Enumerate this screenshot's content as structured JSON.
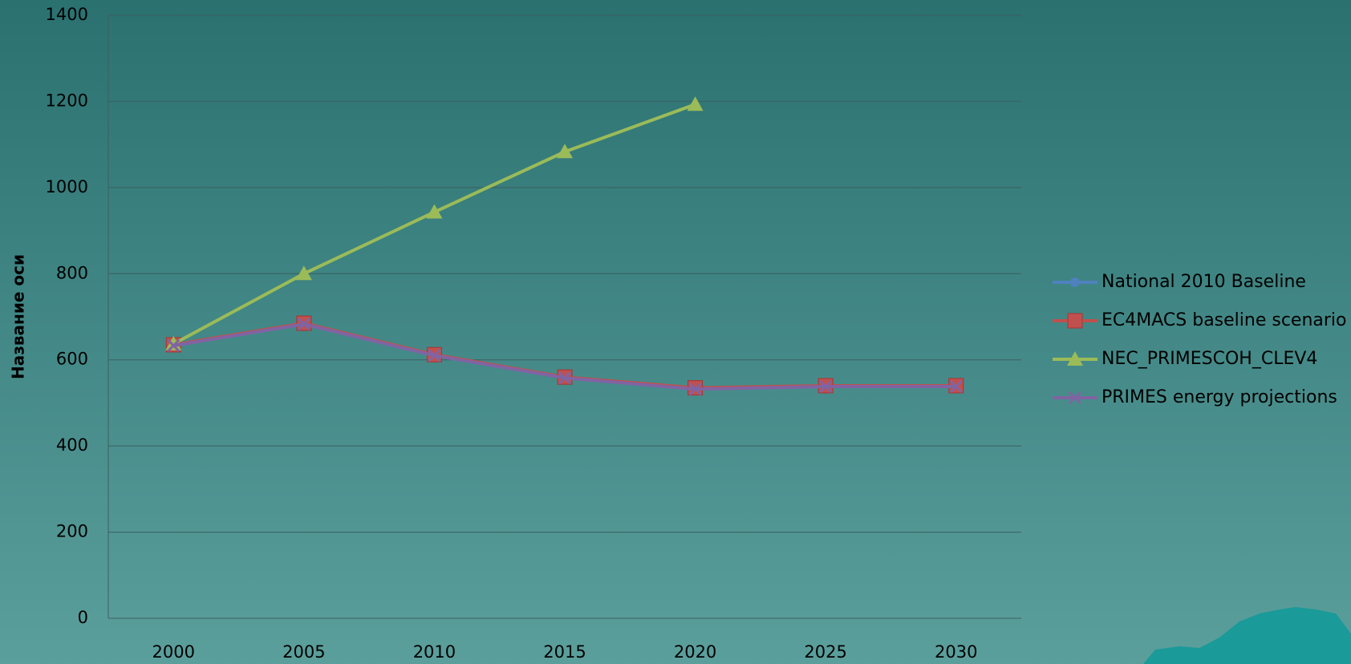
{
  "chart_data": {
    "type": "line",
    "y_label": "Название оси",
    "categories": [
      "2000",
      "2005",
      "2010",
      "2015",
      "2020",
      "2025",
      "2030"
    ],
    "series": [
      {
        "name": "National 2010 Baseline",
        "color": "#4f81bd",
        "marker": "circle",
        "values": [
          633,
          683,
          610,
          558,
          532,
          538,
          538
        ]
      },
      {
        "name": "EC4MACS baseline scenario",
        "color": "#c0504d",
        "marker": "square",
        "values": [
          635,
          685,
          612,
          560,
          535,
          540,
          540
        ]
      },
      {
        "name": "NEC_PRIMESCOH_CLEV4",
        "color": "#9bbb59",
        "marker": "triangle",
        "values": [
          637,
          800,
          943,
          1083,
          1193,
          null,
          null
        ]
      },
      {
        "name": "PRIMES energy projections",
        "color": "#8064a2",
        "marker": "x",
        "values": [
          633,
          683,
          610,
          558,
          532,
          538,
          538
        ]
      }
    ],
    "ylim": [
      0,
      1400
    ],
    "yticks": [
      0,
      200,
      400,
      600,
      800,
      1000,
      1200,
      1400
    ],
    "grid": true
  }
}
